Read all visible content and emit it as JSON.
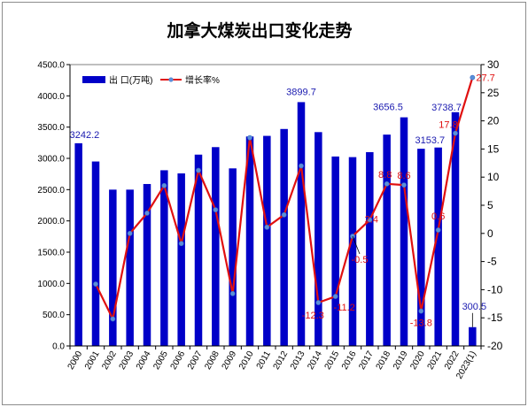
{
  "chart_data": {
    "type": "bar",
    "title": "加拿大煤炭出口变化走势",
    "categories": [
      "2000",
      "2001",
      "2002",
      "2003",
      "2004",
      "2005",
      "2006",
      "2007",
      "2008",
      "2009",
      "2010",
      "2011",
      "2012",
      "2013",
      "2014",
      "2015",
      "2016",
      "2017",
      "2018",
      "2019",
      "2020",
      "2021",
      "2022",
      "2023(1)"
    ],
    "series": [
      {
        "name": "出 口(万吨)",
        "type": "bar",
        "axis": "left",
        "color": "#0000c8",
        "values": [
          3242.2,
          2950,
          2500,
          2500,
          2590,
          2810,
          2760,
          3060,
          3180,
          2840,
          3350,
          3360,
          3470,
          3899.7,
          3420,
          3030,
          3020,
          3100,
          3380,
          3656.5,
          3153.7,
          3173.7,
          3738.7,
          300.5
        ]
      },
      {
        "name": "增长率%",
        "type": "line",
        "axis": "right",
        "color": "#e01010",
        "marker_color": "#5b8fd9",
        "values": [
          null,
          -9,
          -15.2,
          0,
          3.6,
          8.5,
          -1.8,
          11.2,
          4.2,
          -10.7,
          17,
          1.1,
          3.3,
          12,
          -12.3,
          -11.2,
          -0.5,
          2.4,
          8.8,
          8.6,
          -13.8,
          0.6,
          17.8,
          27.7
        ]
      }
    ],
    "bar_data_labels": [
      {
        "index": 0,
        "text": "3242.2"
      },
      {
        "index": 13,
        "text": "3899.7"
      },
      {
        "index": 19,
        "text": "3656.5"
      },
      {
        "index": 20,
        "text": "3153.7"
      },
      {
        "index": 22,
        "text": "3738.7"
      },
      {
        "index": 23,
        "text": "300.5"
      }
    ],
    "rate_data_labels": [
      {
        "index": 14,
        "text": "-12.3"
      },
      {
        "index": 15,
        "text": "-11.2"
      },
      {
        "index": 16,
        "text": "-0.5"
      },
      {
        "index": 17,
        "text": "2.4"
      },
      {
        "index": 18,
        "text": "8.8"
      },
      {
        "index": 19,
        "text": "8.6"
      },
      {
        "index": 20,
        "text": "-13.8"
      },
      {
        "index": 21,
        "text": "0.6"
      },
      {
        "index": 22,
        "text": "17.8"
      },
      {
        "index": 23,
        "text": "27.7"
      }
    ],
    "y_left": {
      "min": 0,
      "max": 4500,
      "step": 500,
      "tick_labels": [
        "0.0",
        "500.0",
        "1000.0",
        "1500.0",
        "2000.0",
        "2500.0",
        "3000.0",
        "3500.0",
        "4000.0",
        "4500.0"
      ]
    },
    "y_right": {
      "min": -20,
      "max": 30,
      "step": 5,
      "tick_labels": [
        "-20",
        "-15",
        "-10",
        "-5",
        "0",
        "5",
        "10",
        "15",
        "20",
        "25",
        "30"
      ]
    },
    "grid": false,
    "legend": "top-left"
  }
}
